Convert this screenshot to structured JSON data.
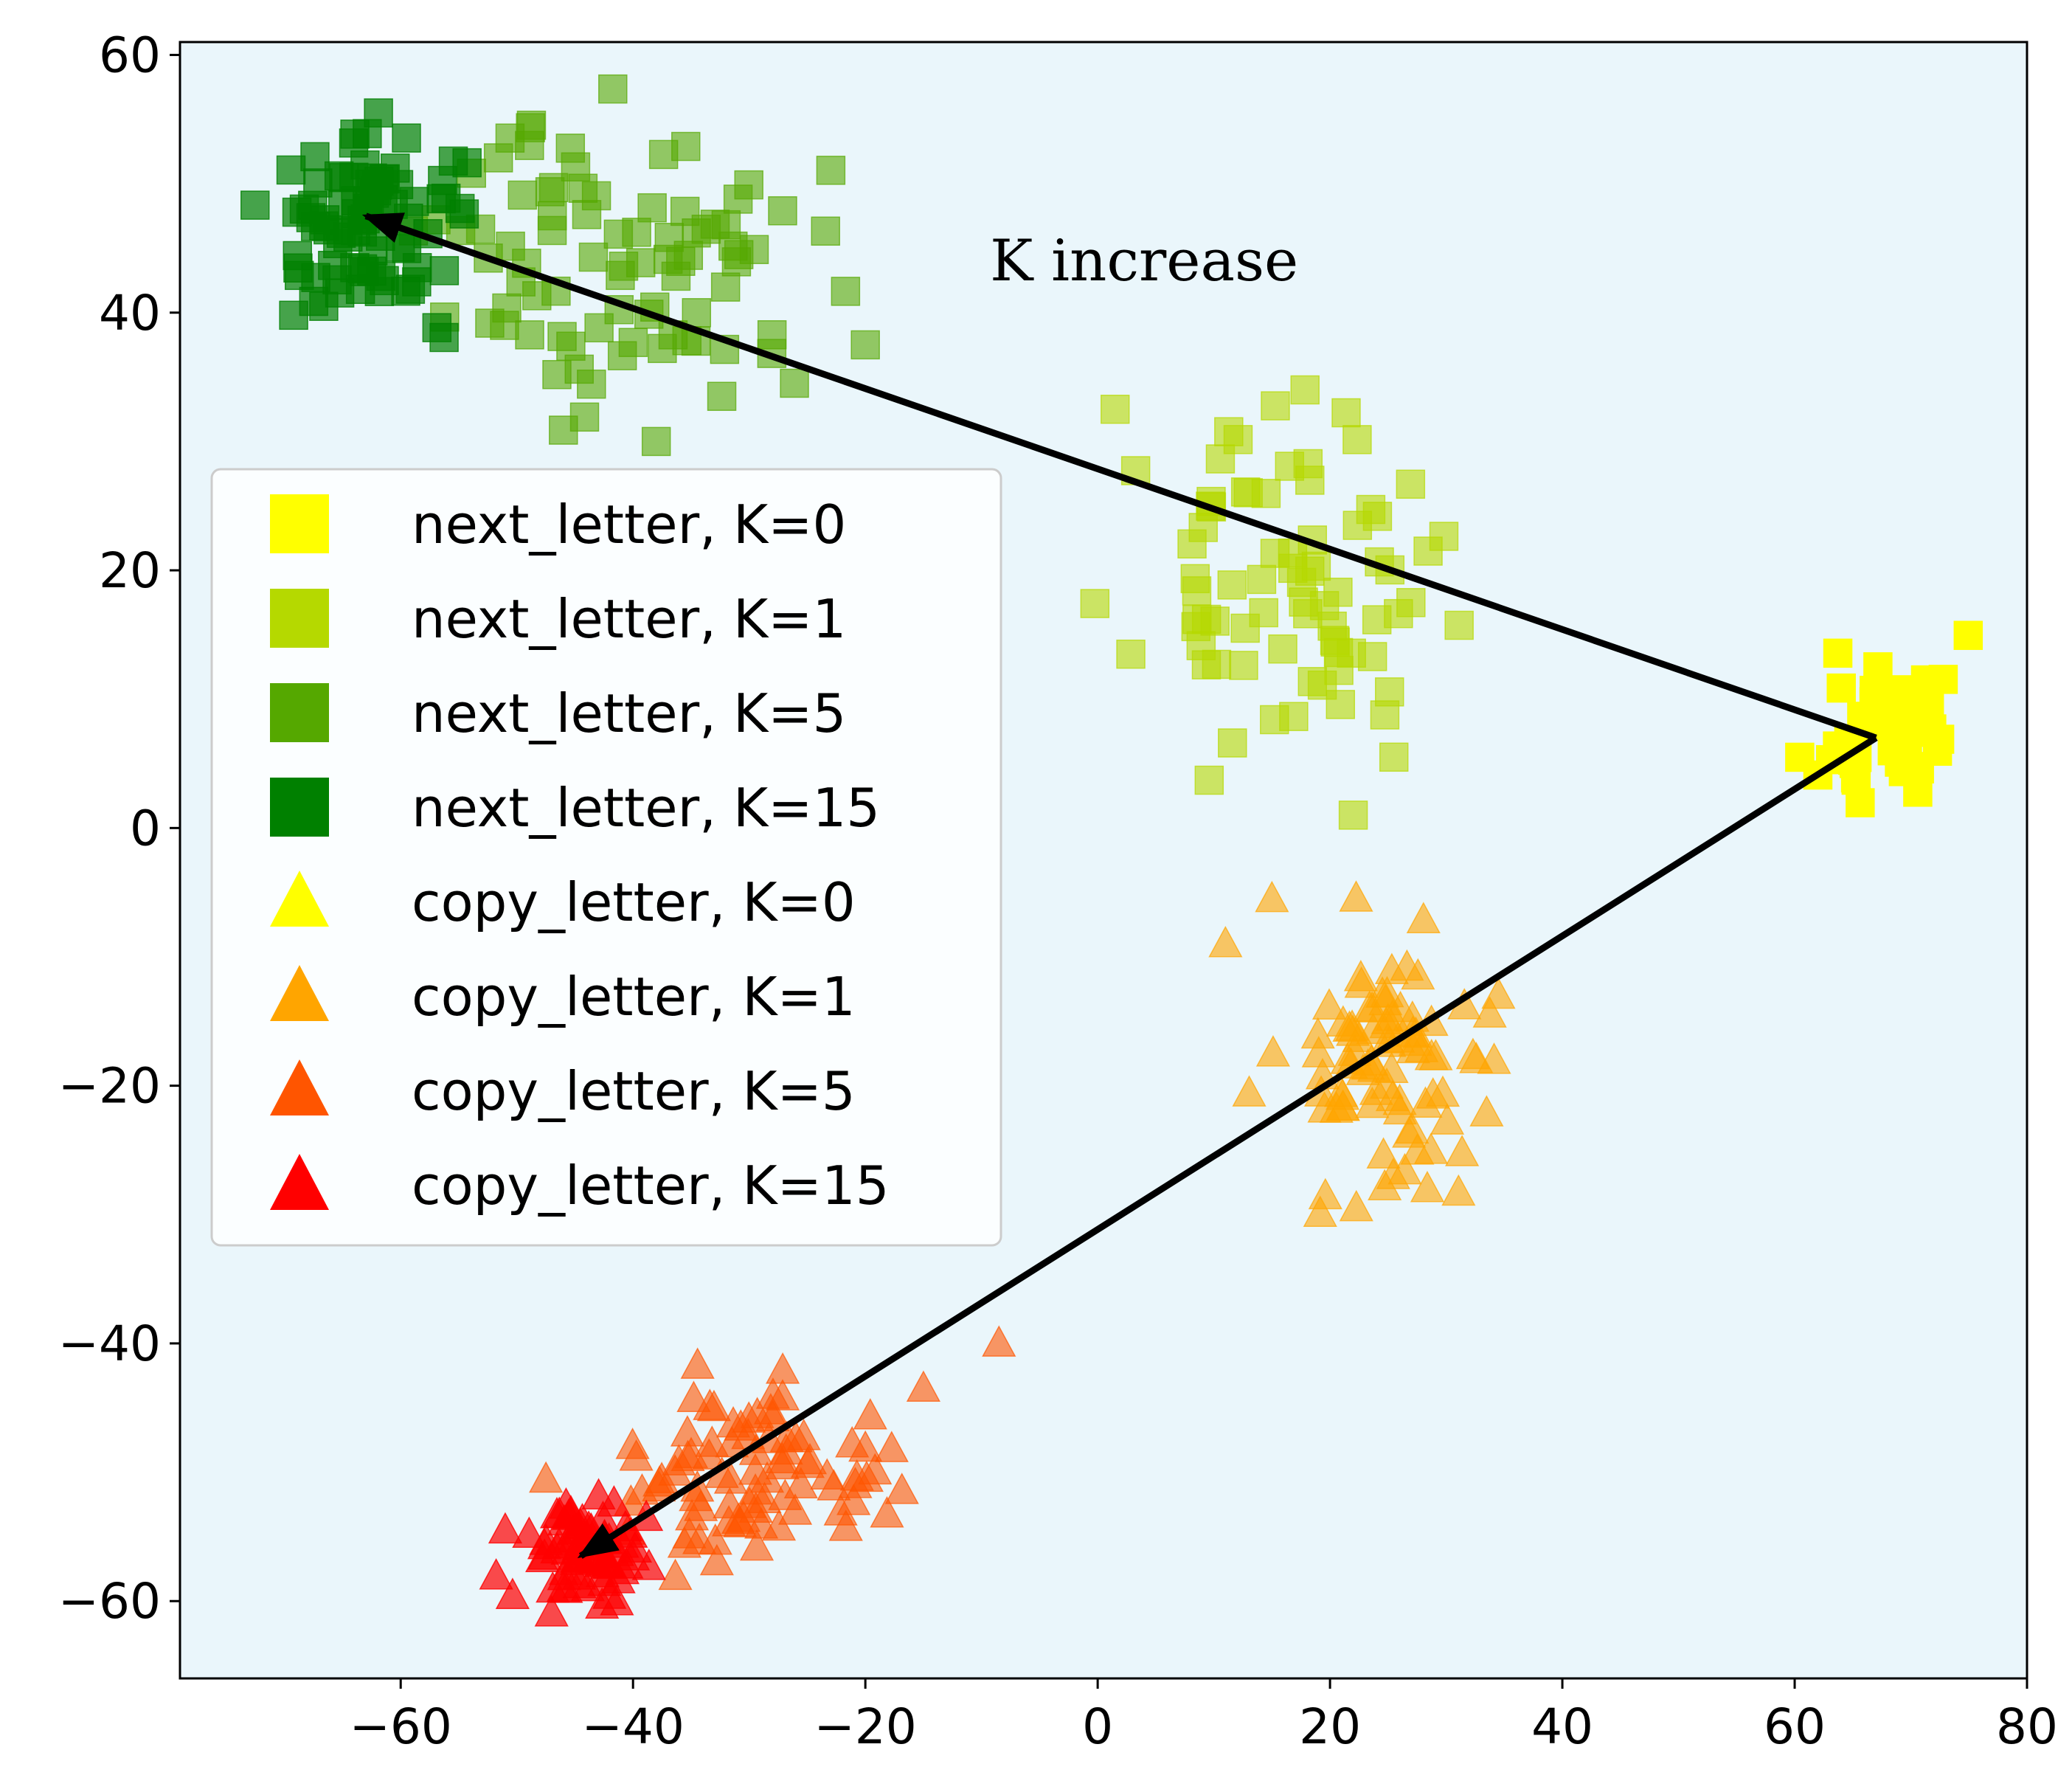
{
  "chart_data": {
    "type": "scatter",
    "title": "",
    "xlabel": "",
    "ylabel": "",
    "xlim": [
      -79,
      80
    ],
    "ylim": [
      -66,
      61
    ],
    "xticks": [
      -60,
      -40,
      -20,
      0,
      20,
      40,
      60,
      80
    ],
    "yticks": [
      -60,
      -40,
      -20,
      0,
      20,
      40,
      60
    ],
    "xtick_labels": [
      "−60",
      "−40",
      "−20",
      "0",
      "20",
      "40",
      "60",
      "80"
    ],
    "ytick_labels": [
      "−60",
      "−40",
      "−20",
      "0",
      "20",
      "40",
      "60"
    ],
    "grid": false,
    "background": "#eaf6fb",
    "legend_position": "center-left",
    "series": [
      {
        "name": "next_letter, K=0",
        "marker": "square",
        "color": "#ffff00",
        "alpha": 1.0,
        "clusters": [
          {
            "cx": 68,
            "cy": 8,
            "sx": 3,
            "sy": 3.5,
            "n": 45,
            "seed": 11
          }
        ]
      },
      {
        "name": "next_letter, K=1",
        "marker": "square",
        "color": "#b5d900",
        "alpha": 0.6,
        "clusters": [
          {
            "cx": 16,
            "cy": 19,
            "sx": 6,
            "sy": 6,
            "n": 75,
            "seed": 23
          }
        ]
      },
      {
        "name": "next_letter, K=5",
        "marker": "square",
        "color": "#55a800",
        "alpha": 0.6,
        "clusters": [
          {
            "cx": -40,
            "cy": 44,
            "sx": 8,
            "sy": 5.5,
            "n": 85,
            "seed": 37
          }
        ]
      },
      {
        "name": "next_letter, K=15",
        "marker": "square",
        "color": "#008000",
        "alpha": 0.7,
        "clusters": [
          {
            "cx": -62,
            "cy": 47,
            "sx": 4.5,
            "sy": 3.5,
            "n": 85,
            "seed": 41
          }
        ]
      },
      {
        "name": "copy_letter, K=0",
        "marker": "triangle",
        "color": "#ffff00",
        "alpha": 1.0,
        "clusters": []
      },
      {
        "name": "copy_letter, K=1",
        "marker": "triangle",
        "color": "#ffa500",
        "alpha": 0.6,
        "clusters": [
          {
            "cx": 25,
            "cy": -18,
            "sx": 4.5,
            "sy": 5,
            "n": 85,
            "seed": 53
          }
        ]
      },
      {
        "name": "copy_letter, K=5",
        "marker": "triangle",
        "color": "#ff5500",
        "alpha": 0.6,
        "clusters": [
          {
            "cx": -30,
            "cy": -51,
            "sx": 6,
            "sy": 3.5,
            "n": 85,
            "seed": 67
          }
        ]
      },
      {
        "name": "copy_letter, K=15",
        "marker": "triangle",
        "color": "#ff0000",
        "alpha": 0.7,
        "clusters": [
          {
            "cx": -44,
            "cy": -56,
            "sx": 2.5,
            "sy": 2,
            "n": 70,
            "seed": 79
          }
        ]
      }
    ],
    "extra_points": [
      {
        "series": "next_letter, K=1",
        "x": 1.5,
        "y": 32.5
      },
      {
        "series": "next_letter, K=1",
        "x": 22,
        "y": 1
      },
      {
        "series": "next_letter, K=1",
        "x": 25.5,
        "y": 5.5
      },
      {
        "series": "next_letter, K=5",
        "x": -20,
        "y": 37.5
      },
      {
        "series": "next_letter, K=5",
        "x": -38,
        "y": 30
      },
      {
        "series": "copy_letter, K=1",
        "x": 15,
        "y": -5.5
      },
      {
        "series": "copy_letter, K=1",
        "x": 11,
        "y": -9
      },
      {
        "series": "copy_letter, K=1",
        "x": 34.5,
        "y": -13
      },
      {
        "series": "copy_letter, K=5",
        "x": -8.5,
        "y": -40
      },
      {
        "series": "copy_letter, K=5",
        "x": -15,
        "y": -43.5
      },
      {
        "series": "copy_letter, K=15",
        "x": -51,
        "y": -54.5
      }
    ],
    "arrows": [
      {
        "from": [
          67,
          7
        ],
        "to": [
          -63,
          47.5
        ]
      },
      {
        "from": [
          67,
          7
        ],
        "to": [
          -44.5,
          -56.5
        ]
      }
    ],
    "annotations": [
      {
        "text": "K increase",
        "x": 4,
        "y": 42.5
      }
    ]
  }
}
